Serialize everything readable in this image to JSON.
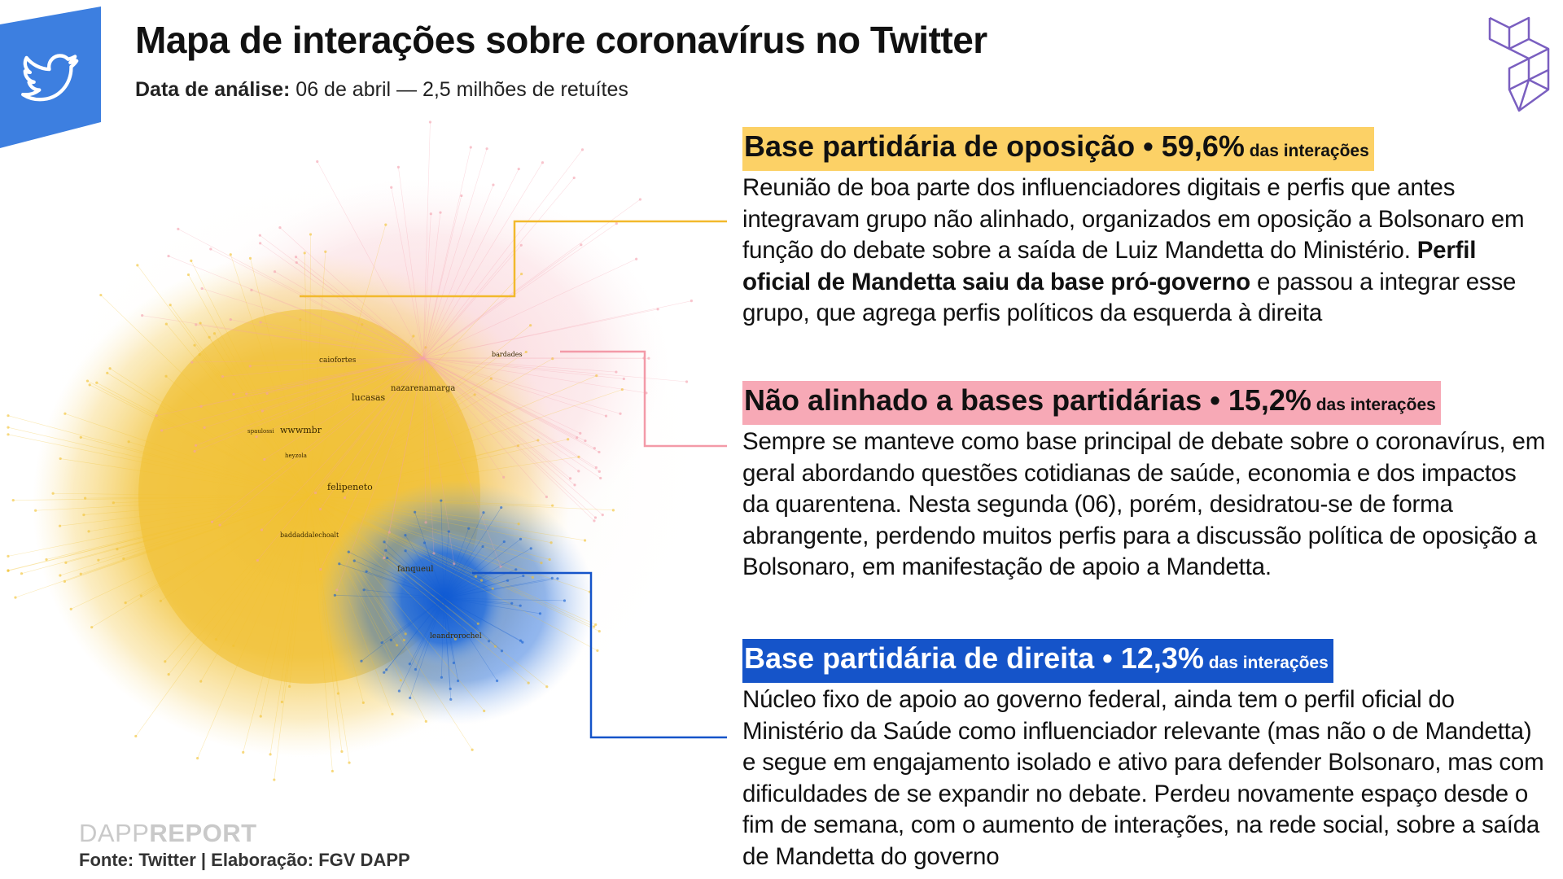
{
  "header": {
    "title": "Mapa de interações sobre coronavírus no Twitter",
    "subtitle_label": "Data de análise:",
    "subtitle_value": " 06 de abril — 2,5 milhões de retuítes"
  },
  "colors": {
    "opposition": "#f2c230",
    "unaligned": "#f4a0ad",
    "right": "#1660d4",
    "badge": "#3d7fe0",
    "logo": "#7a5fc0"
  },
  "icons": {
    "badge": "twitter-bird-icon",
    "logo": "dapp-cube-logo-icon"
  },
  "network": {
    "labels": [
      "caiofortes",
      "nazarenamarga",
      "lucasas",
      "wwwmbr",
      "felipeneto",
      "bardades",
      "baddaddalechoalt",
      "fanqueul",
      "leandrorochel",
      "spaulossi",
      "heyzola"
    ]
  },
  "groups": [
    {
      "name": "Base partidária de oposição",
      "sep": " • ",
      "percent": "59,6%",
      "suffix": " das interações",
      "text_a": "Reunião de boa parte dos influenciadores digitais e perfis que antes integravam grupo não alinhado, organizados em oposição a Bolsonaro em função do debate sobre a saída de Luiz Mandetta do Ministério. ",
      "text_bold": "Perfil oficial de Mandetta saiu da base pró-governo",
      "text_b": " e passou a integrar esse grupo, que agrega perfis políticos da esquerda à direita"
    },
    {
      "name": "Não alinhado a bases partidárias",
      "sep": " • ",
      "percent": "15,2%",
      "suffix": " das interações",
      "text": "Sempre se manteve como base principal de debate sobre o coronavírus, em geral abordando questões cotidianas de saúde, economia e dos impactos da quarentena. Nesta segunda (06), porém, desidratou-se de forma abrangente, perdendo muitos perfis para a discussão política de oposição a Bolsonaro, em manifestação de apoio a Mandetta."
    },
    {
      "name": "Base partidária de direita",
      "sep": " • ",
      "percent": "12,3%",
      "suffix": " das interações",
      "text": "Núcleo fixo de apoio ao governo federal, ainda tem o perfil oficial do Ministério da Saúde como influenciador relevante (mas não o de Mandetta) e segue em engajamento isolado e ativo para defender Bolsonaro, mas com dificuldades de se expandir no debate. Perdeu novamente espaço desde o fim de semana, com o aumento de interações, na rede social, sobre a saída de Mandetta do governo"
    }
  ],
  "footer": {
    "brand_a": "DAPP",
    "brand_b": "REPORT",
    "source": "Fonte: Twitter | Elaboração: FGV DAPP"
  }
}
